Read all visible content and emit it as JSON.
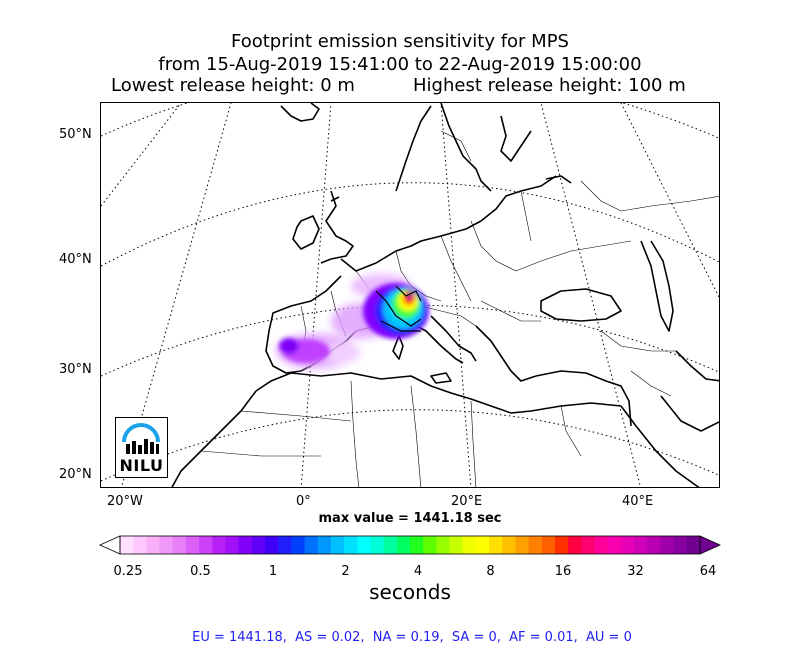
{
  "title": {
    "line1": "Footprint emission sensitivity for MPS",
    "line2": "from 15-Aug-2019 15:41:00 to 22-Aug-2019 15:00:00",
    "lowest_release": "Lowest release height: 0 m",
    "highest_release": "Highest release height: 100 m"
  },
  "map": {
    "lat_labels": [
      "50°N",
      "40°N",
      "30°N",
      "20°N"
    ],
    "lon_labels": [
      "20°W",
      "0°",
      "20°E",
      "40°E"
    ],
    "logo": {
      "name": "NILU",
      "accent_color": "#1aa3e8"
    },
    "sensitivity_plume_colors": [
      "#c000ff",
      "#1a1aff",
      "#00ffff",
      "#40ff00",
      "#ffff00",
      "#ff4000",
      "#ff007f",
      "#7f00bf"
    ]
  },
  "max_value_text": "max value = 1441.18 sec",
  "colorbar": {
    "ticks": [
      "0.25",
      "0.5",
      "1",
      "2",
      "4",
      "8",
      "16",
      "32",
      "64"
    ],
    "label": "seconds",
    "colors": [
      "#ffe0ff",
      "#ffc8ff",
      "#f8b0f8",
      "#f098f8",
      "#e880f8",
      "#dc60f8",
      "#cc40f8",
      "#b820f8",
      "#a010f8",
      "#8000f8",
      "#6000f8",
      "#4000f8",
      "#2020ff",
      "#0040ff",
      "#0070ff",
      "#0098ff",
      "#00c0ff",
      "#00e0ff",
      "#00ffff",
      "#00ffd8",
      "#00ffa0",
      "#00ff60",
      "#20ff20",
      "#60ff00",
      "#98ff00",
      "#c8ff00",
      "#f0ff00",
      "#ffff00",
      "#ffe000",
      "#ffc000",
      "#ffa000",
      "#ff8000",
      "#ff6000",
      "#ff3000",
      "#ff0040",
      "#ff0070",
      "#ff0098",
      "#f800b0",
      "#e800b8",
      "#d000b8",
      "#b800b0",
      "#a000a8",
      "#8800a0",
      "#700090"
    ]
  },
  "region_summary": "EU = 1441.18,  AS = 0.02,  NA = 0.19,  SA = 0,  AF = 0.01,  AU = 0"
}
